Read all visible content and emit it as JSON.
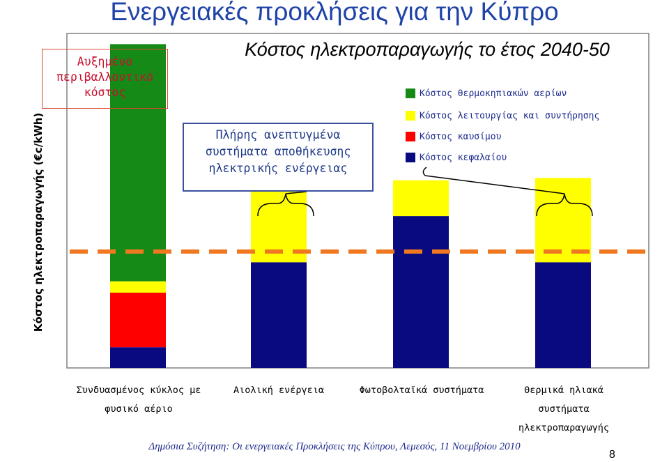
{
  "header": {
    "main_title": "Ενεργειακές προκλήσεις  για την Κύπρο",
    "chart_title": "Κόστος ηλεκτροπαραγωγής το έτος 2040-50"
  },
  "annotations": {
    "environment_cost": "Αυξημένο\nπεριβαλλοντικό\nκόστος",
    "storage_systems": "Πλήρης ανεπτυγμένα\nσυστήματα αποθήκευσης\nηλεκτρικής ενέργειας"
  },
  "footer": {
    "text": "Δημόσια Συζήτηση: Οι ενεργειακές Προκλήσεις της Κύπρου, Λεμεσός, 11 Νοεμβρίου 2010",
    "page_number": "8"
  },
  "colors": {
    "title_blue": "#1f43a8",
    "greenhouse": "#168a16",
    "operation_maintenance": "#ffff00",
    "fuel": "#ff0000",
    "capital": "#0a0a80",
    "reference_line": "#f07820",
    "plot_border": "#808080"
  },
  "chart_data": {
    "type": "bar",
    "stacked": true,
    "title": "Κόστος ηλεκτροπαραγωγής το έτος 2040-50",
    "ylabel": "Κόστος ηλεκτροπαραγωγής (€c/kWh)",
    "xlabel": "",
    "y_tick_labels": false,
    "ylim": [
      0,
      100
    ],
    "categories": [
      "Συνδυασμένος κύκλος με\nφυσικό αέριο",
      "Αιολική ενέργεια",
      "Φωτοβολταϊκά συστήματα",
      "Θερμικά ηλιακά\nσυστήματα\nηλεκτροπαραγωγής"
    ],
    "series": [
      {
        "name": "Κόστος κεφαλαίου",
        "color": "#0a0a80",
        "values": [
          6.2,
          31.6,
          45.4,
          31.6
        ]
      },
      {
        "name": "Κόστος καυσίμου",
        "color": "#ff0000",
        "values": [
          16.3,
          0,
          0,
          0
        ]
      },
      {
        "name": "Κόστος λειτουργίας και συντήρησης",
        "color": "#ffff00",
        "values": [
          3.4,
          25.2,
          10.7,
          25.2
        ]
      },
      {
        "name": "Κόστος θερμοκηπιακών αερίων",
        "color": "#168a16",
        "values": [
          70.9,
          0,
          0,
          0
        ]
      }
    ],
    "legend": {
      "position": "top-right",
      "entries": [
        {
          "label": "Κόστος θερμοκηπιακών αερίων",
          "color": "#168a16"
        },
        {
          "label": "Κόστος λειτουργίας και συντήρησης",
          "color": "#ffff00"
        },
        {
          "label": "Κόστος καυσίμου",
          "color": "#ff0000"
        },
        {
          "label": "Κόστος κεφαλαίου",
          "color": "#0a0a80"
        }
      ]
    },
    "reference_line": {
      "y": 34.8,
      "style": "dashed",
      "color": "#f07820"
    },
    "grid": false
  }
}
